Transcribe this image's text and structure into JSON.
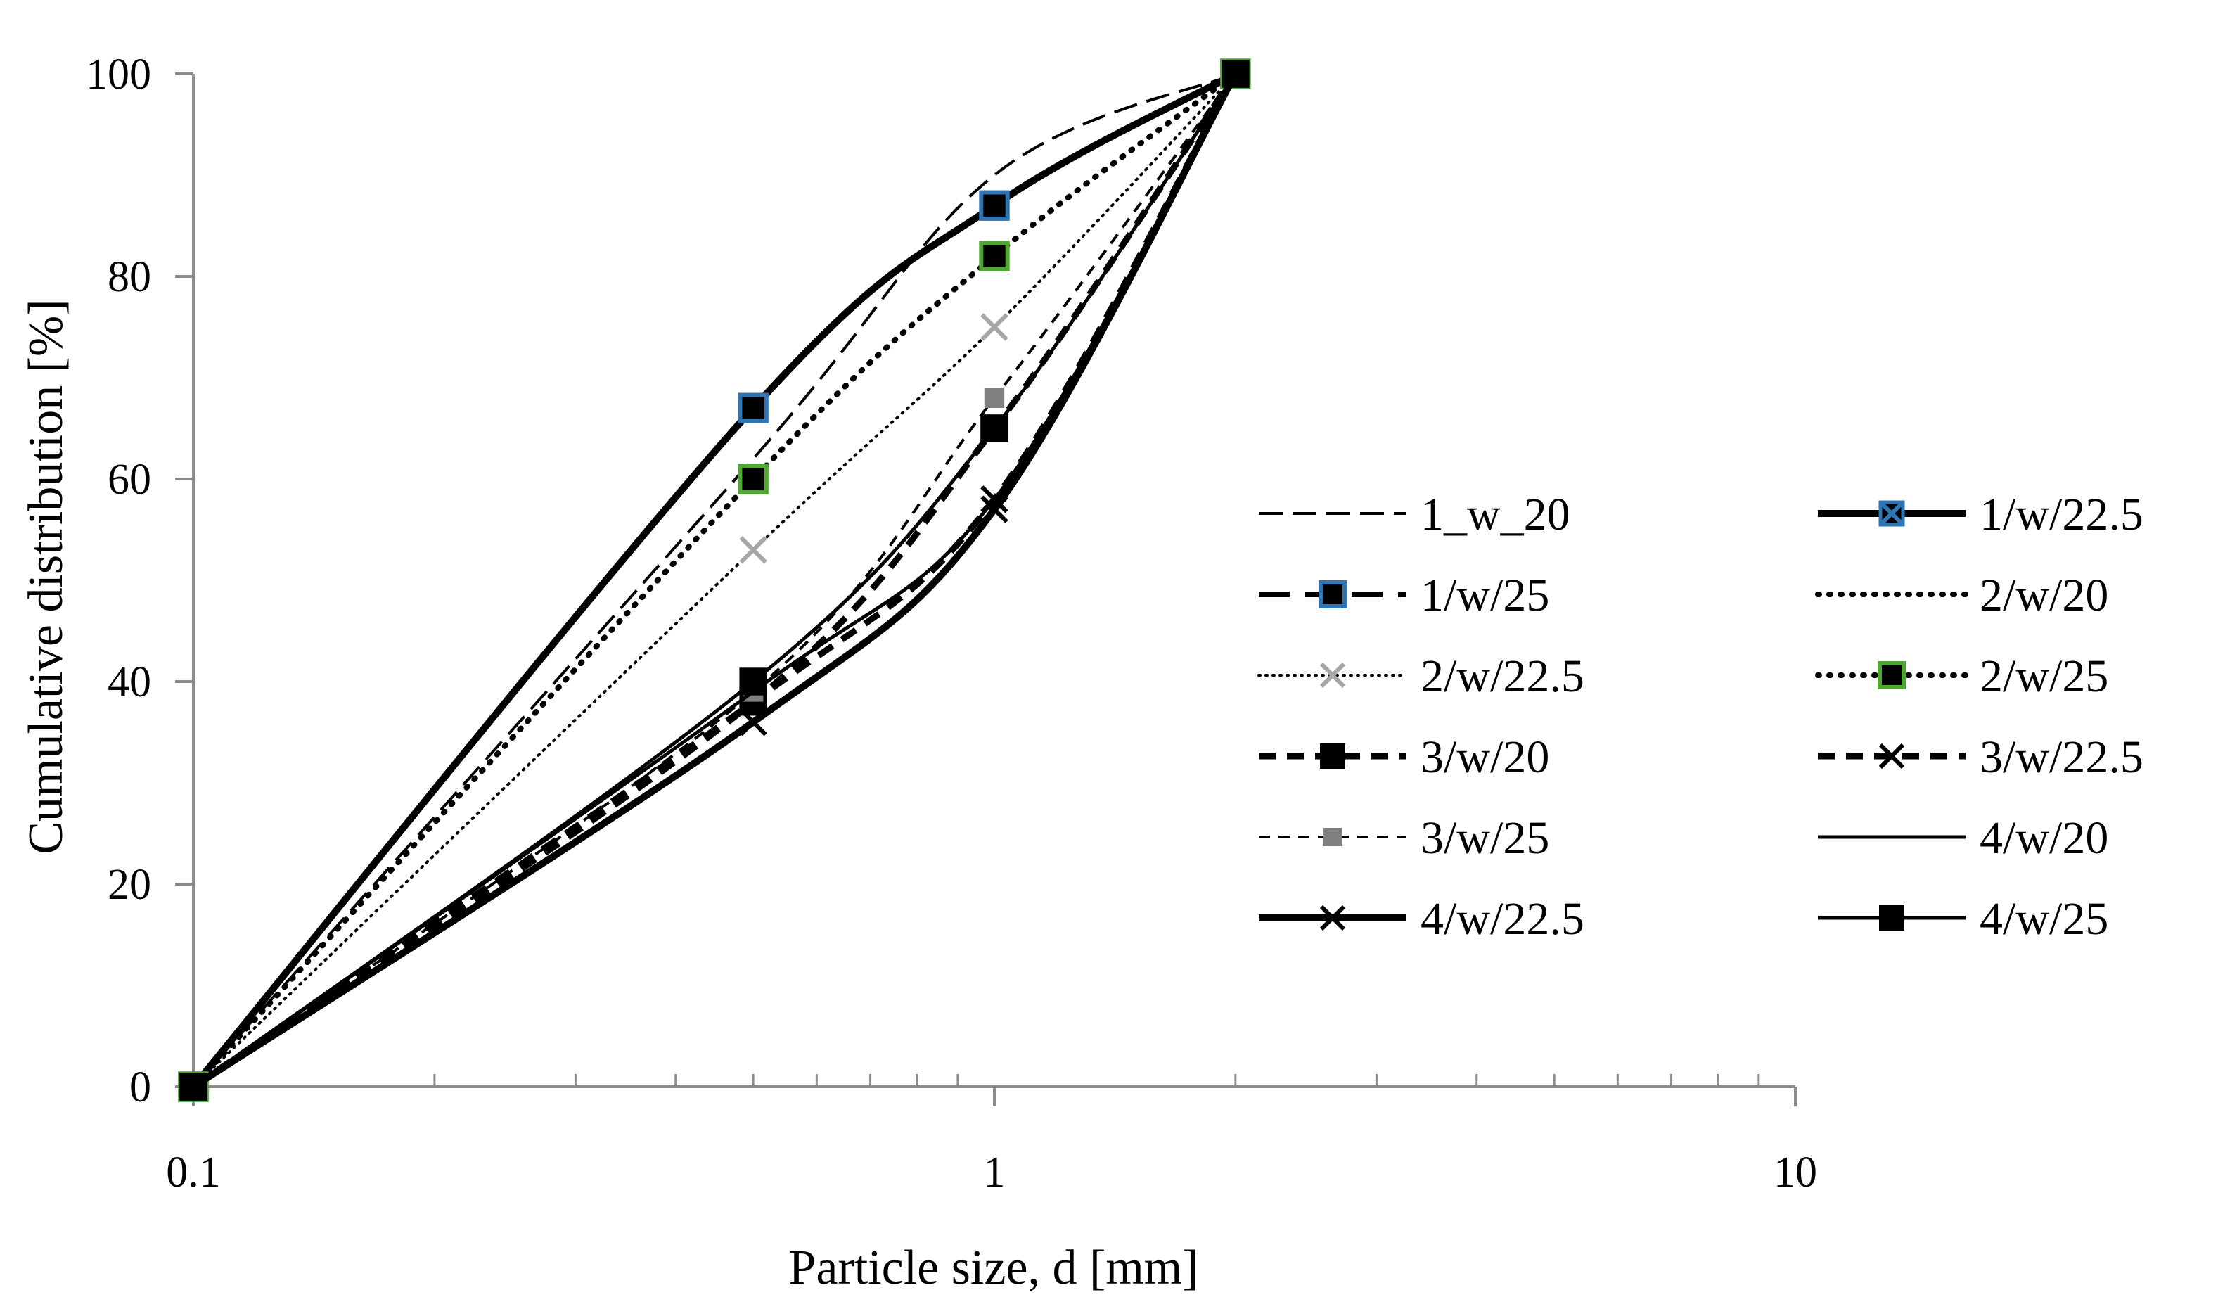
{
  "chart_data": {
    "type": "line",
    "title": "",
    "xlabel": "Particle size, d [mm]",
    "ylabel": "Cumulative distribution [%]",
    "xscale": "log",
    "xlim": [
      0.1,
      10
    ],
    "ylim": [
      0,
      100
    ],
    "xticks": [
      0.1,
      1,
      10
    ],
    "xtick_labels": [
      "0.1",
      "1",
      "10"
    ],
    "yticks": [
      0,
      20,
      40,
      60,
      80,
      100
    ],
    "ytick_labels": [
      "0",
      "20",
      "40",
      "60",
      "80",
      "100"
    ],
    "grid": false,
    "legend_position": "right",
    "x": [
      0.1,
      0.5,
      1,
      2
    ],
    "series": [
      {
        "name": "1_w_20",
        "values": [
          0,
          62,
          90,
          100
        ],
        "line": "longdash-thin",
        "marker": "none",
        "color": "#000000"
      },
      {
        "name": "1/w/22.5",
        "values": [
          0,
          67,
          87,
          100
        ],
        "line": "solid-thick",
        "marker": "x",
        "color": "#000000",
        "marker_edge": "#2e75b6"
      },
      {
        "name": "1/w/25",
        "values": [
          0,
          67,
          87,
          100
        ],
        "line": "longdash-thick",
        "marker": "square",
        "color": "#000000",
        "marker_edge": "#2e75b6"
      },
      {
        "name": "2/w/20",
        "values": [
          0,
          60,
          82,
          100
        ],
        "line": "dotted-thick",
        "marker": "none",
        "color": "#000000"
      },
      {
        "name": "2/w/22.5",
        "values": [
          0,
          53,
          75,
          100
        ],
        "line": "dotted-thin",
        "marker": "x",
        "color": "#000000",
        "marker_color": "#a6a6a6"
      },
      {
        "name": "2/w/25",
        "values": [
          0,
          60,
          82,
          100
        ],
        "line": "dotted-thick",
        "marker": "square",
        "color": "#000000",
        "marker_edge": "#4ea72e"
      },
      {
        "name": "3/w/20",
        "values": [
          0,
          38,
          65,
          100
        ],
        "line": "dash-thick",
        "marker": "square",
        "color": "#000000"
      },
      {
        "name": "3/w/22.5",
        "values": [
          0,
          38,
          58,
          100
        ],
        "line": "dash-thick",
        "marker": "x",
        "color": "#000000"
      },
      {
        "name": "3/w/25",
        "values": [
          0,
          39,
          68,
          100
        ],
        "line": "dash-thin",
        "marker": "square-small",
        "color": "#000000",
        "marker_color": "#7f7f7f"
      },
      {
        "name": "4/w/20",
        "values": [
          0,
          39,
          58,
          100
        ],
        "line": "solid-thin",
        "marker": "none",
        "color": "#000000"
      },
      {
        "name": "4/w/22.5",
        "values": [
          0,
          36,
          57,
          100
        ],
        "line": "solid-thick",
        "marker": "x",
        "color": "#000000"
      },
      {
        "name": "4/w/25",
        "values": [
          0,
          40,
          65,
          100
        ],
        "line": "solid-thin",
        "marker": "square",
        "color": "#000000"
      }
    ]
  }
}
